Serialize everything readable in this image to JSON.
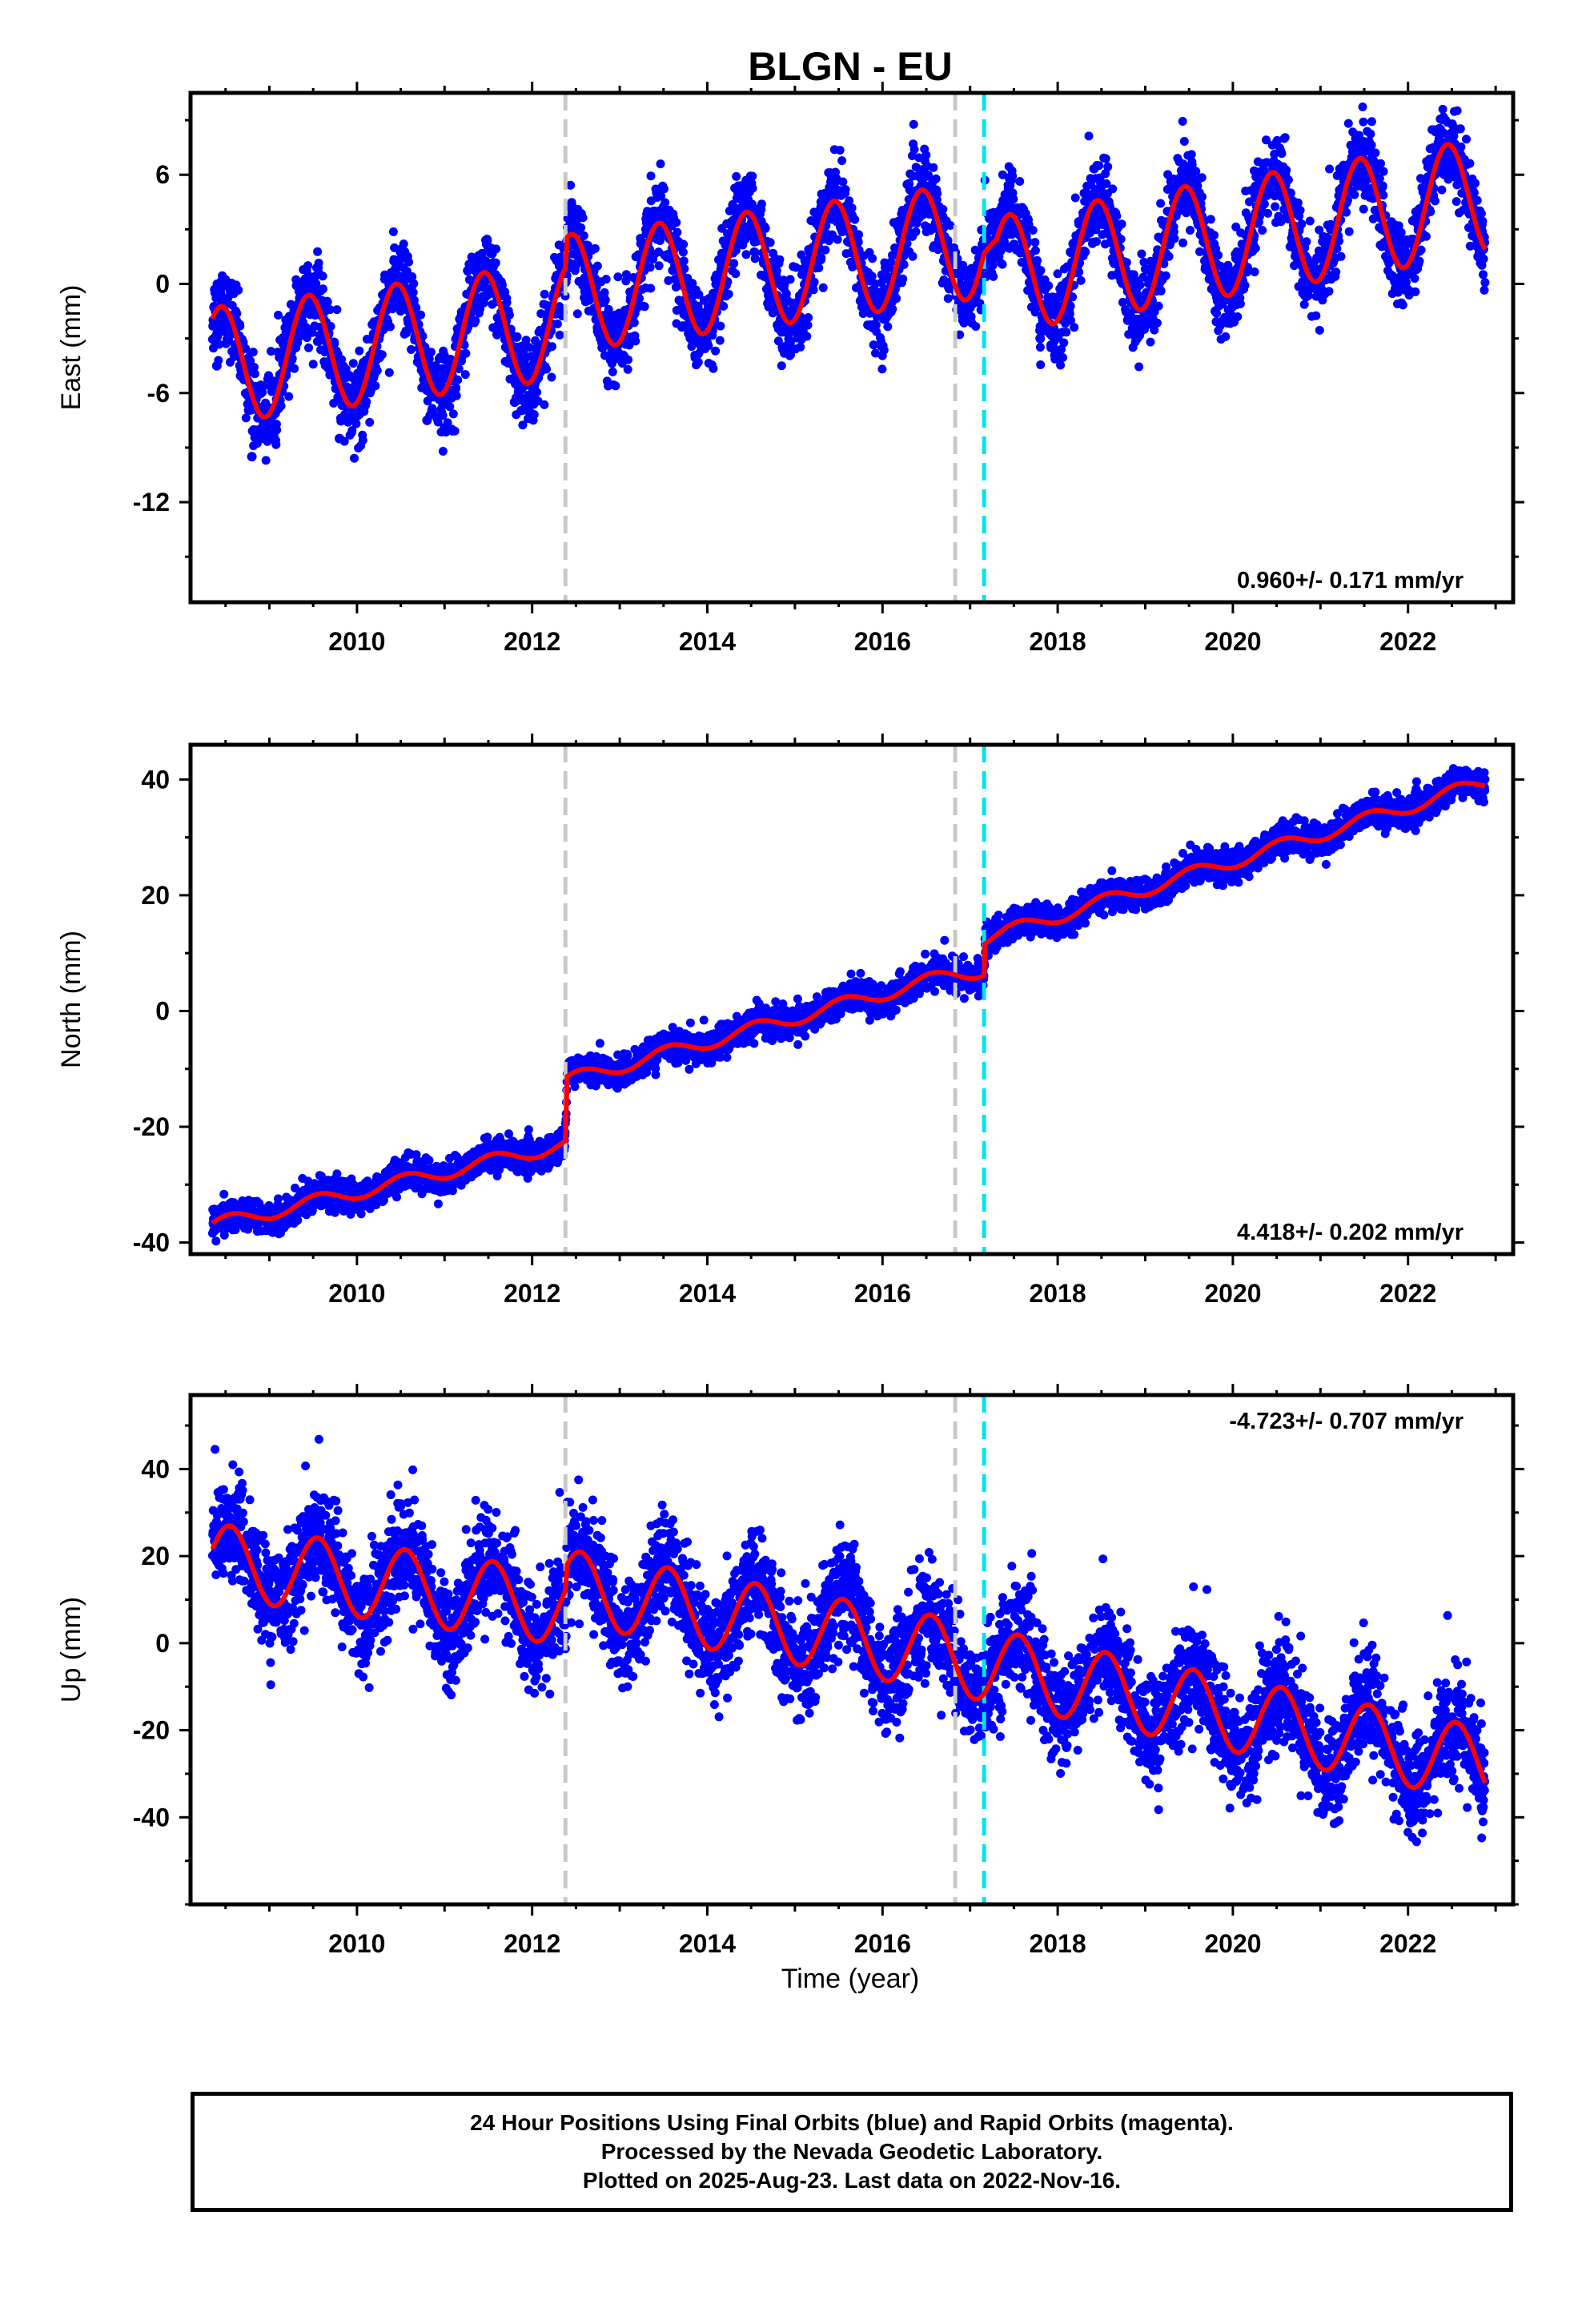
{
  "title": "BLGN - EU",
  "x_axis_title": "Time (year)",
  "footer": {
    "line1": "24 Hour Positions Using Final Orbits (blue) and Rapid Orbits (magenta).",
    "line2": "Processed by the Nevada Geodetic Laboratory.",
    "line3": "Plotted on 2025-Aug-23. Last data on 2022-Nov-16."
  },
  "colors": {
    "data_points": "#0000ff",
    "model_fit": "#ff0000",
    "equipment_change_line": "#c8c8c8",
    "earthquake_line": "#00e5ee"
  },
  "chart_data": [
    {
      "type": "scatter",
      "component": "East",
      "ylabel": "East (mm)",
      "xlabel": "",
      "xlim": [
        2008.1,
        2023.2
      ],
      "ylim": [
        -17.5,
        10.5
      ],
      "xticks": [
        2010,
        2012,
        2014,
        2016,
        2018,
        2020,
        2022
      ],
      "yticks": [
        -12,
        -6,
        0,
        6
      ],
      "rate": "0.960+/- 0.171 mm/yr",
      "rate_position": "bottom-right",
      "vlines": [
        {
          "x": 2012.38,
          "kind": "equipment change"
        },
        {
          "x": 2016.83,
          "kind": "equipment change"
        },
        {
          "x": 2017.16,
          "kind": "earthquake"
        }
      ],
      "x_range_data": [
        2008.35,
        2022.88
      ],
      "model": {
        "base": [
          [
            2008.35,
            -4.5
          ],
          [
            2012.38,
            -2.0
          ],
          [
            2012.4,
            -0.5
          ],
          [
            2016.83,
            2.2
          ],
          [
            2017.16,
            2.5
          ],
          [
            2017.3,
            0.5
          ],
          [
            2022.88,
            4.8
          ]
        ],
        "annual_amplitude": 3.2,
        "annual_peak": 0.45
      },
      "scatter_sigma": 1.1,
      "series": [
        {
          "name": "Final Orbits",
          "color": "#0000ff",
          "x": [
            2008.4,
            2008.8,
            2009.3,
            2009.8,
            2010.3,
            2010.8,
            2011.3,
            2011.8,
            2012.3,
            2012.8,
            2013.3,
            2013.8,
            2014.3,
            2014.8,
            2015.3,
            2015.8,
            2016.3,
            2016.8,
            2017.3,
            2017.8,
            2018.3,
            2018.8,
            2019.3,
            2019.8,
            2020.3,
            2020.8,
            2021.3,
            2021.8,
            2022.3,
            2022.8
          ],
          "y": [
            -4.5,
            -9.5,
            -3.5,
            -8.5,
            -2.5,
            -7.5,
            -1.5,
            -6.5,
            0.5,
            -3.5,
            3.0,
            -2.0,
            3.5,
            -1.5,
            4.5,
            -0.5,
            5.5,
            0.5,
            2.0,
            -3.0,
            3.0,
            -2.0,
            4.0,
            -1.5,
            5.0,
            -0.5,
            6.0,
            0.5,
            6.5,
            1.5
          ]
        }
      ]
    },
    {
      "type": "scatter",
      "component": "North",
      "ylabel": "North (mm)",
      "xlabel": "",
      "xlim": [
        2008.1,
        2023.2
      ],
      "ylim": [
        -42,
        46
      ],
      "xticks": [
        2010,
        2012,
        2014,
        2016,
        2018,
        2020,
        2022
      ],
      "yticks": [
        -40,
        -20,
        0,
        20,
        40
      ],
      "rate": "4.418+/- 0.202 mm/yr",
      "rate_position": "bottom-right",
      "vlines": [
        {
          "x": 2012.38,
          "kind": "equipment change"
        },
        {
          "x": 2016.83,
          "kind": "equipment change"
        },
        {
          "x": 2017.16,
          "kind": "earthquake"
        }
      ],
      "x_range_data": [
        2008.35,
        2022.88
      ],
      "model": {
        "base": [
          [
            2008.35,
            -37.0
          ],
          [
            2012.38,
            -23.0
          ],
          [
            2012.4,
            -12.0
          ],
          [
            2016.83,
            6.5
          ],
          [
            2017.16,
            7.0
          ],
          [
            2017.17,
            12.5
          ],
          [
            2022.88,
            39.5
          ]
        ],
        "annual_amplitude": 1.2,
        "annual_peak": 0.55
      },
      "scatter_sigma": 1.3,
      "series": [
        {
          "name": "Final Orbits",
          "color": "#0000ff",
          "x": [
            2008.5,
            2009.5,
            2010.5,
            2011.5,
            2012.3,
            2012.5,
            2013.5,
            2014.5,
            2015.5,
            2016.5,
            2017.0,
            2017.5,
            2018.5,
            2019.5,
            2020.5,
            2021.5,
            2022.5
          ],
          "y": [
            -36,
            -31,
            -28,
            -24,
            -22,
            -11,
            -7,
            -4,
            0,
            4,
            7,
            16,
            21,
            26,
            30,
            34,
            38
          ]
        }
      ]
    },
    {
      "type": "scatter",
      "component": "Up",
      "ylabel": "Up (mm)",
      "xlabel": "Time (year)",
      "xlim": [
        2008.1,
        2023.2
      ],
      "ylim": [
        -60,
        57
      ],
      "xticks": [
        2010,
        2012,
        2014,
        2016,
        2018,
        2020,
        2022
      ],
      "yticks": [
        -40,
        -20,
        0,
        20,
        40
      ],
      "rate": "-4.723+/- 0.707 mm/yr",
      "rate_position": "top-right",
      "vlines": [
        {
          "x": 2012.38,
          "kind": "equipment change"
        },
        {
          "x": 2016.83,
          "kind": "equipment change"
        },
        {
          "x": 2017.16,
          "kind": "earthquake"
        }
      ],
      "x_range_data": [
        2008.35,
        2022.88
      ],
      "model": {
        "base": [
          [
            2008.35,
            19.0
          ],
          [
            2012.38,
            8.0
          ],
          [
            2012.4,
            13.0
          ],
          [
            2016.83,
            -3.0
          ],
          [
            2017.16,
            -5.0
          ],
          [
            2022.88,
            -28.0
          ]
        ],
        "annual_amplitude": 8.5,
        "annual_peak": 0.55
      },
      "scatter_sigma": 6.0,
      "series": [
        {
          "name": "Final Orbits",
          "color": "#0000ff",
          "x": [
            2008.5,
            2009.0,
            2009.5,
            2010.0,
            2010.5,
            2011.0,
            2011.5,
            2012.0,
            2012.5,
            2013.0,
            2013.5,
            2014.0,
            2014.5,
            2015.0,
            2015.5,
            2016.0,
            2016.5,
            2017.0,
            2017.5,
            2018.0,
            2018.5,
            2019.0,
            2019.5,
            2020.0,
            2020.5,
            2021.0,
            2021.5,
            2022.0,
            2022.5,
            2022.85
          ],
          "y": [
            30,
            12,
            26,
            6,
            21,
            1,
            17,
            -3,
            23,
            3,
            19,
            0,
            13,
            -6,
            9,
            -11,
            5,
            -8,
            1,
            -19,
            -4,
            -23,
            -8,
            -28,
            -13,
            -33,
            -18,
            -38,
            -22,
            -38
          ]
        }
      ]
    }
  ]
}
